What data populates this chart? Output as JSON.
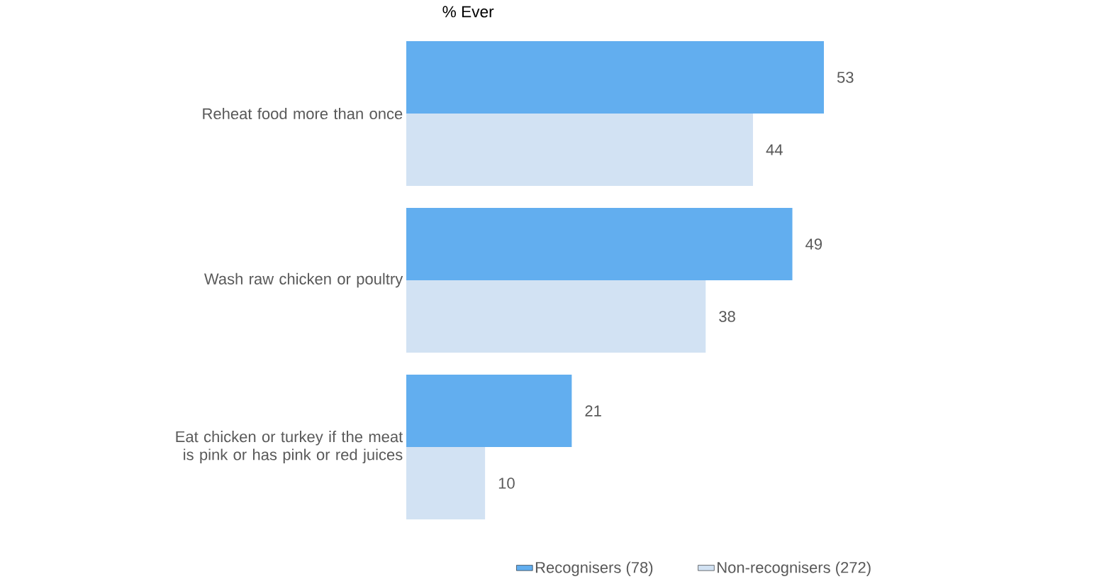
{
  "chart_data": {
    "type": "bar",
    "orientation": "horizontal",
    "title": "% Ever",
    "categories": [
      "Reheat food more than once",
      "Wash raw chicken or poultry",
      "Eat chicken or turkey if the meat is pink or has pink or red juices"
    ],
    "series": [
      {
        "name": "Recognisers (78)",
        "color": "#62aeef",
        "values": [
          53,
          49,
          21
        ]
      },
      {
        "name": "Non-recognisers (272)",
        "color": "#d2e2f3",
        "values": [
          44,
          38,
          10
        ]
      }
    ],
    "data_labels": true,
    "tick_labels": "y",
    "legend": "bottom"
  }
}
